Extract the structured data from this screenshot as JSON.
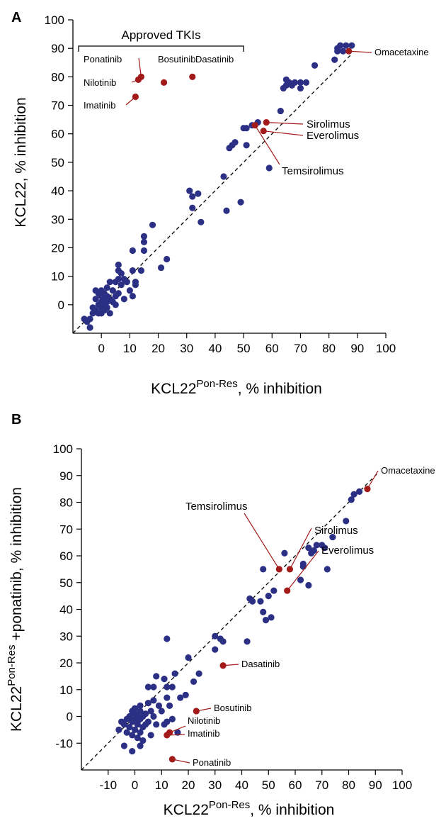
{
  "chart_data": [
    {
      "panel": "A",
      "type": "scatter",
      "xlabel": "KCL22",
      "xlabel_sup": "Pon-Res",
      "xlabel_suffix": ", % inhibition",
      "ylabel": "KCL22, % inhibition",
      "xlim": [
        -10,
        100
      ],
      "ylim": [
        -10,
        100
      ],
      "xticks": [
        0,
        10,
        20,
        30,
        40,
        50,
        60,
        70,
        80,
        90,
        100
      ],
      "yticks": [
        0,
        10,
        20,
        30,
        40,
        50,
        60,
        70,
        80,
        90,
        100
      ],
      "bracket_label": "Approved TKIs",
      "bracket_range": [
        -8,
        50
      ],
      "colors": {
        "points": "#2b3085",
        "highlight": "#a31a1a"
      },
      "points": [
        [
          -6,
          -5
        ],
        [
          -5,
          -6
        ],
        [
          -4,
          -8
        ],
        [
          -4,
          -5
        ],
        [
          -3,
          -3
        ],
        [
          -3,
          -1
        ],
        [
          -2,
          2
        ],
        [
          -2,
          5
        ],
        [
          -2,
          -2
        ],
        [
          -1,
          0
        ],
        [
          -1,
          -3
        ],
        [
          -1,
          4
        ],
        [
          0,
          1
        ],
        [
          0,
          -1
        ],
        [
          0,
          3
        ],
        [
          0,
          -3
        ],
        [
          0,
          5
        ],
        [
          1,
          0
        ],
        [
          1,
          2
        ],
        [
          1,
          -2
        ],
        [
          1,
          4
        ],
        [
          2,
          3
        ],
        [
          2,
          6
        ],
        [
          2,
          -1
        ],
        [
          2,
          1
        ],
        [
          3,
          8
        ],
        [
          3,
          2
        ],
        [
          3,
          -3
        ],
        [
          4,
          1
        ],
        [
          4,
          5
        ],
        [
          5,
          3
        ],
        [
          5,
          8
        ],
        [
          5,
          0
        ],
        [
          6,
          9
        ],
        [
          6,
          12
        ],
        [
          6,
          14
        ],
        [
          6,
          4
        ],
        [
          7,
          7
        ],
        [
          7,
          11
        ],
        [
          8,
          9
        ],
        [
          8,
          2
        ],
        [
          9,
          8
        ],
        [
          10,
          5
        ],
        [
          11,
          12
        ],
        [
          11,
          3
        ],
        [
          11,
          19
        ],
        [
          12,
          7
        ],
        [
          12,
          8
        ],
        [
          14,
          12
        ],
        [
          15,
          24
        ],
        [
          15,
          19
        ],
        [
          15,
          22
        ],
        [
          18,
          28
        ],
        [
          21,
          13
        ],
        [
          23,
          16
        ],
        [
          31,
          40
        ],
        [
          32,
          38
        ],
        [
          32,
          34
        ],
        [
          34,
          39
        ],
        [
          35,
          29
        ],
        [
          43,
          45
        ],
        [
          44,
          33
        ],
        [
          45,
          55
        ],
        [
          46,
          56
        ],
        [
          47,
          57
        ],
        [
          49,
          36
        ],
        [
          50,
          62
        ],
        [
          51,
          62
        ],
        [
          51,
          56
        ],
        [
          53,
          63
        ],
        [
          55,
          64
        ],
        [
          59,
          48
        ],
        [
          63,
          68
        ],
        [
          64,
          76
        ],
        [
          65,
          79
        ],
        [
          65,
          77
        ],
        [
          66,
          78
        ],
        [
          67,
          77
        ],
        [
          68,
          78
        ],
        [
          70,
          76
        ],
        [
          70,
          78
        ],
        [
          72,
          78
        ],
        [
          75,
          84
        ],
        [
          82,
          86
        ],
        [
          83,
          90
        ],
        [
          83,
          89
        ],
        [
          84,
          91
        ],
        [
          85,
          89
        ],
        [
          86,
          91
        ],
        [
          88,
          91
        ]
      ],
      "highlights": [
        {
          "name": "Ponatinib",
          "x": 14,
          "y": 80
        },
        {
          "name": "Bosutinib",
          "x": 22,
          "y": 78
        },
        {
          "name": "Dasatinib",
          "x": 32,
          "y": 80
        },
        {
          "name": "Nilotinib",
          "x": 13,
          "y": 79
        },
        {
          "name": "Imatinib",
          "x": 12,
          "y": 73
        },
        {
          "name": "Omacetaxine",
          "x": 87,
          "y": 89
        },
        {
          "name": "Sirolimus",
          "x": 58,
          "y": 64
        },
        {
          "name": "Everolimus",
          "x": 57,
          "y": 61
        },
        {
          "name": "Temsirolimus",
          "x": 54,
          "y": 63
        }
      ]
    },
    {
      "panel": "B",
      "type": "scatter",
      "xlabel": "KCL22",
      "xlabel_sup": "Pon-Res",
      "xlabel_suffix": ", % inhibition",
      "ylabel": "KCL22",
      "ylabel_sup": "Pon-Res",
      "ylabel_suffix": " +ponatinib, % inhibition",
      "xlim": [
        -20,
        100
      ],
      "ylim": [
        -20,
        100
      ],
      "xticks": [
        -10,
        0,
        10,
        20,
        30,
        40,
        50,
        60,
        70,
        80,
        90,
        100
      ],
      "yticks": [
        -10,
        0,
        10,
        20,
        30,
        40,
        50,
        60,
        70,
        80,
        90,
        100
      ],
      "colors": {
        "points": "#2b3085",
        "highlight": "#a31a1a"
      },
      "points": [
        [
          -6,
          -5
        ],
        [
          -5,
          -2
        ],
        [
          -4,
          -3
        ],
        [
          -4,
          -11
        ],
        [
          -3,
          -1
        ],
        [
          -3,
          -6
        ],
        [
          -2,
          -4
        ],
        [
          -2,
          0
        ],
        [
          -1,
          2
        ],
        [
          -1,
          -2
        ],
        [
          -1,
          -7
        ],
        [
          -1,
          -13
        ],
        [
          0,
          1
        ],
        [
          0,
          -1
        ],
        [
          0,
          3
        ],
        [
          0,
          -5
        ],
        [
          1,
          0
        ],
        [
          1,
          -2
        ],
        [
          1,
          -3
        ],
        [
          1,
          -8
        ],
        [
          2,
          4
        ],
        [
          2,
          2
        ],
        [
          2,
          -1
        ],
        [
          2,
          -6
        ],
        [
          2,
          -11
        ],
        [
          3,
          -4
        ],
        [
          3,
          0
        ],
        [
          3,
          -9
        ],
        [
          4,
          1
        ],
        [
          4,
          -3
        ],
        [
          5,
          5
        ],
        [
          5,
          -2
        ],
        [
          5,
          11
        ],
        [
          6,
          2
        ],
        [
          6,
          -7
        ],
        [
          7,
          0
        ],
        [
          7,
          6
        ],
        [
          7,
          11
        ],
        [
          8,
          15
        ],
        [
          8,
          -3
        ],
        [
          9,
          4
        ],
        [
          10,
          2
        ],
        [
          11,
          14
        ],
        [
          11,
          -3
        ],
        [
          12,
          7
        ],
        [
          12,
          -2
        ],
        [
          12,
          11
        ],
        [
          12,
          29
        ],
        [
          13,
          4
        ],
        [
          14,
          11
        ],
        [
          14,
          -1
        ],
        [
          15,
          16
        ],
        [
          16,
          -6
        ],
        [
          17,
          7
        ],
        [
          19,
          8
        ],
        [
          20,
          22
        ],
        [
          22,
          13
        ],
        [
          24,
          16
        ],
        [
          30,
          30
        ],
        [
          30,
          25
        ],
        [
          32,
          29
        ],
        [
          33,
          28
        ],
        [
          42,
          28
        ],
        [
          43,
          44
        ],
        [
          44,
          43
        ],
        [
          47,
          43
        ],
        [
          48,
          55
        ],
        [
          48,
          39
        ],
        [
          49,
          36
        ],
        [
          50,
          45
        ],
        [
          51,
          37
        ],
        [
          52,
          47
        ],
        [
          56,
          61
        ],
        [
          62,
          51
        ],
        [
          63,
          57
        ],
        [
          63,
          56
        ],
        [
          65,
          63
        ],
        [
          65,
          49
        ],
        [
          66,
          61
        ],
        [
          67,
          62
        ],
        [
          68,
          64
        ],
        [
          70,
          64
        ],
        [
          71,
          63
        ],
        [
          72,
          55
        ],
        [
          74,
          67
        ],
        [
          79,
          73
        ],
        [
          81,
          81
        ],
        [
          82,
          83
        ],
        [
          84,
          84
        ]
      ],
      "highlights": [
        {
          "name": "Omacetaxine",
          "x": 87,
          "y": 85
        },
        {
          "name": "Temsirolimus",
          "x": 54,
          "y": 55
        },
        {
          "name": "Sirolimus",
          "x": 58,
          "y": 55
        },
        {
          "name": "Everolimus",
          "x": 57,
          "y": 47
        },
        {
          "name": "Dasatinib",
          "x": 33,
          "y": 19
        },
        {
          "name": "Bosutinib",
          "x": 23,
          "y": 2
        },
        {
          "name": "Nilotinib",
          "x": 13,
          "y": -6
        },
        {
          "name": "Imatinib",
          "x": 12,
          "y": -7
        },
        {
          "name": "Ponatinib",
          "x": 14,
          "y": -16
        }
      ]
    }
  ]
}
